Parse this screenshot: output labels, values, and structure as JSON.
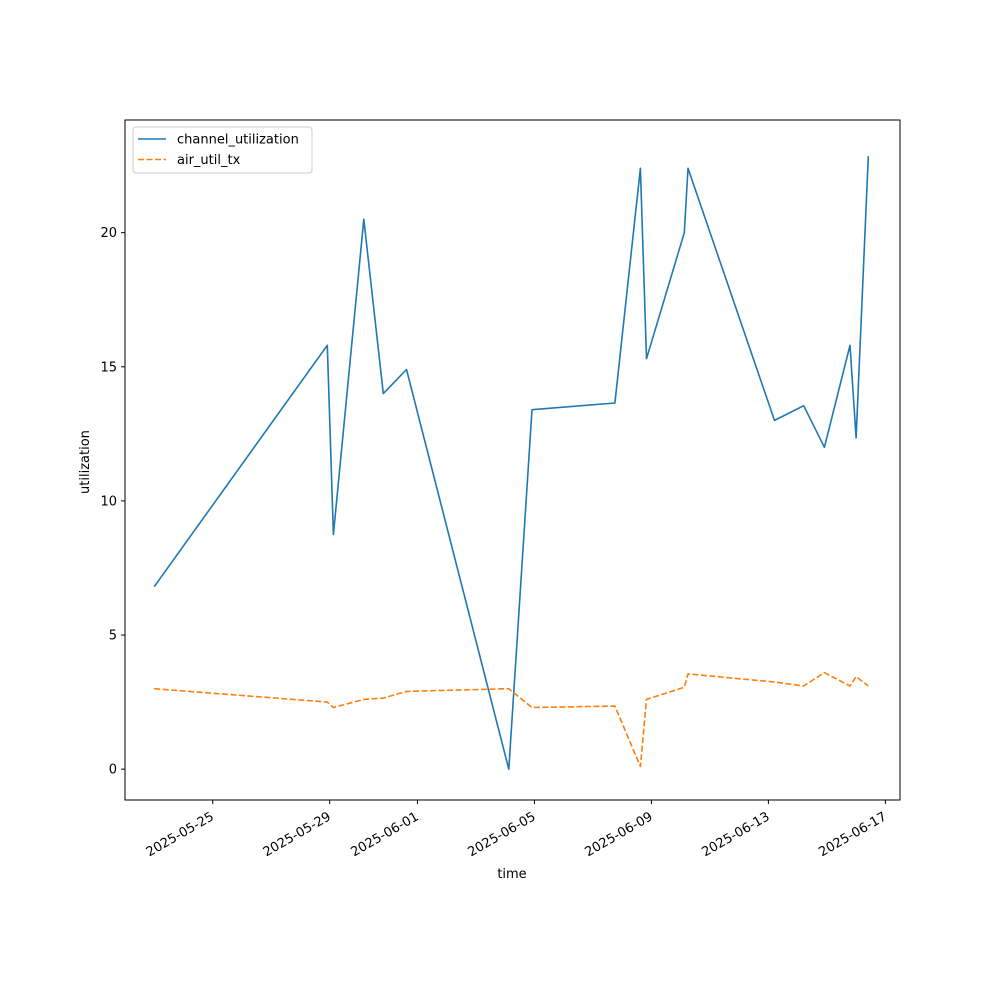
{
  "chart_data": {
    "type": "line",
    "title": "",
    "xlabel": "time",
    "ylabel": "utilization",
    "x_type": "date",
    "xlim": [
      "2025-05-22T00:00",
      "2025-06-17T12:00"
    ],
    "ylim": [
      -1.15,
      24.2
    ],
    "x_ticks": [
      "2025-05-25",
      "2025-05-29",
      "2025-06-01",
      "2025-06-05",
      "2025-06-09",
      "2025-06-13",
      "2025-06-17"
    ],
    "y_ticks": [
      0,
      5,
      10,
      15,
      20
    ],
    "grid": false,
    "legend_position": "upper-left",
    "series": [
      {
        "name": "channel_utilization",
        "color": "#1f77b4",
        "dash": "solid",
        "points": [
          [
            "2025-05-23T00:00",
            6.8
          ],
          [
            "2025-05-28T22:00",
            15.8
          ],
          [
            "2025-05-29T03:00",
            8.75
          ],
          [
            "2025-05-30T04:00",
            20.5
          ],
          [
            "2025-05-30T20:00",
            14.0
          ],
          [
            "2025-05-31T15:00",
            14.9
          ],
          [
            "2025-06-04T03:00",
            0.0
          ],
          [
            "2025-06-04T22:00",
            13.4
          ],
          [
            "2025-06-07T18:00",
            13.65
          ],
          [
            "2025-06-08T15:00",
            22.4
          ],
          [
            "2025-06-08T20:00",
            15.3
          ],
          [
            "2025-06-10T03:00",
            20.0
          ],
          [
            "2025-06-10T06:00",
            22.4
          ],
          [
            "2025-06-13T05:00",
            13.0
          ],
          [
            "2025-06-14T05:00",
            13.55
          ],
          [
            "2025-06-14T22:00",
            12.0
          ],
          [
            "2025-06-15T19:00",
            15.8
          ],
          [
            "2025-06-16T00:00",
            12.35
          ],
          [
            "2025-06-16T10:00",
            22.85
          ]
        ]
      },
      {
        "name": "air_util_tx",
        "color": "#ff7f0e",
        "dash": "dashed",
        "points": [
          [
            "2025-05-23T00:00",
            3.0
          ],
          [
            "2025-05-28T22:00",
            2.5
          ],
          [
            "2025-05-29T03:00",
            2.3
          ],
          [
            "2025-05-30T04:00",
            2.6
          ],
          [
            "2025-05-30T20:00",
            2.65
          ],
          [
            "2025-05-31T15:00",
            2.9
          ],
          [
            "2025-06-04T03:00",
            3.0
          ],
          [
            "2025-06-04T22:00",
            2.3
          ],
          [
            "2025-06-07T18:00",
            2.35
          ],
          [
            "2025-06-08T15:00",
            0.1
          ],
          [
            "2025-06-08T20:00",
            2.6
          ],
          [
            "2025-06-10T03:00",
            3.05
          ],
          [
            "2025-06-10T06:00",
            3.55
          ],
          [
            "2025-06-13T05:00",
            3.25
          ],
          [
            "2025-06-14T05:00",
            3.1
          ],
          [
            "2025-06-14T22:00",
            3.6
          ],
          [
            "2025-06-15T19:00",
            3.1
          ],
          [
            "2025-06-16T00:00",
            3.45
          ],
          [
            "2025-06-16T10:00",
            3.1
          ]
        ]
      }
    ]
  }
}
